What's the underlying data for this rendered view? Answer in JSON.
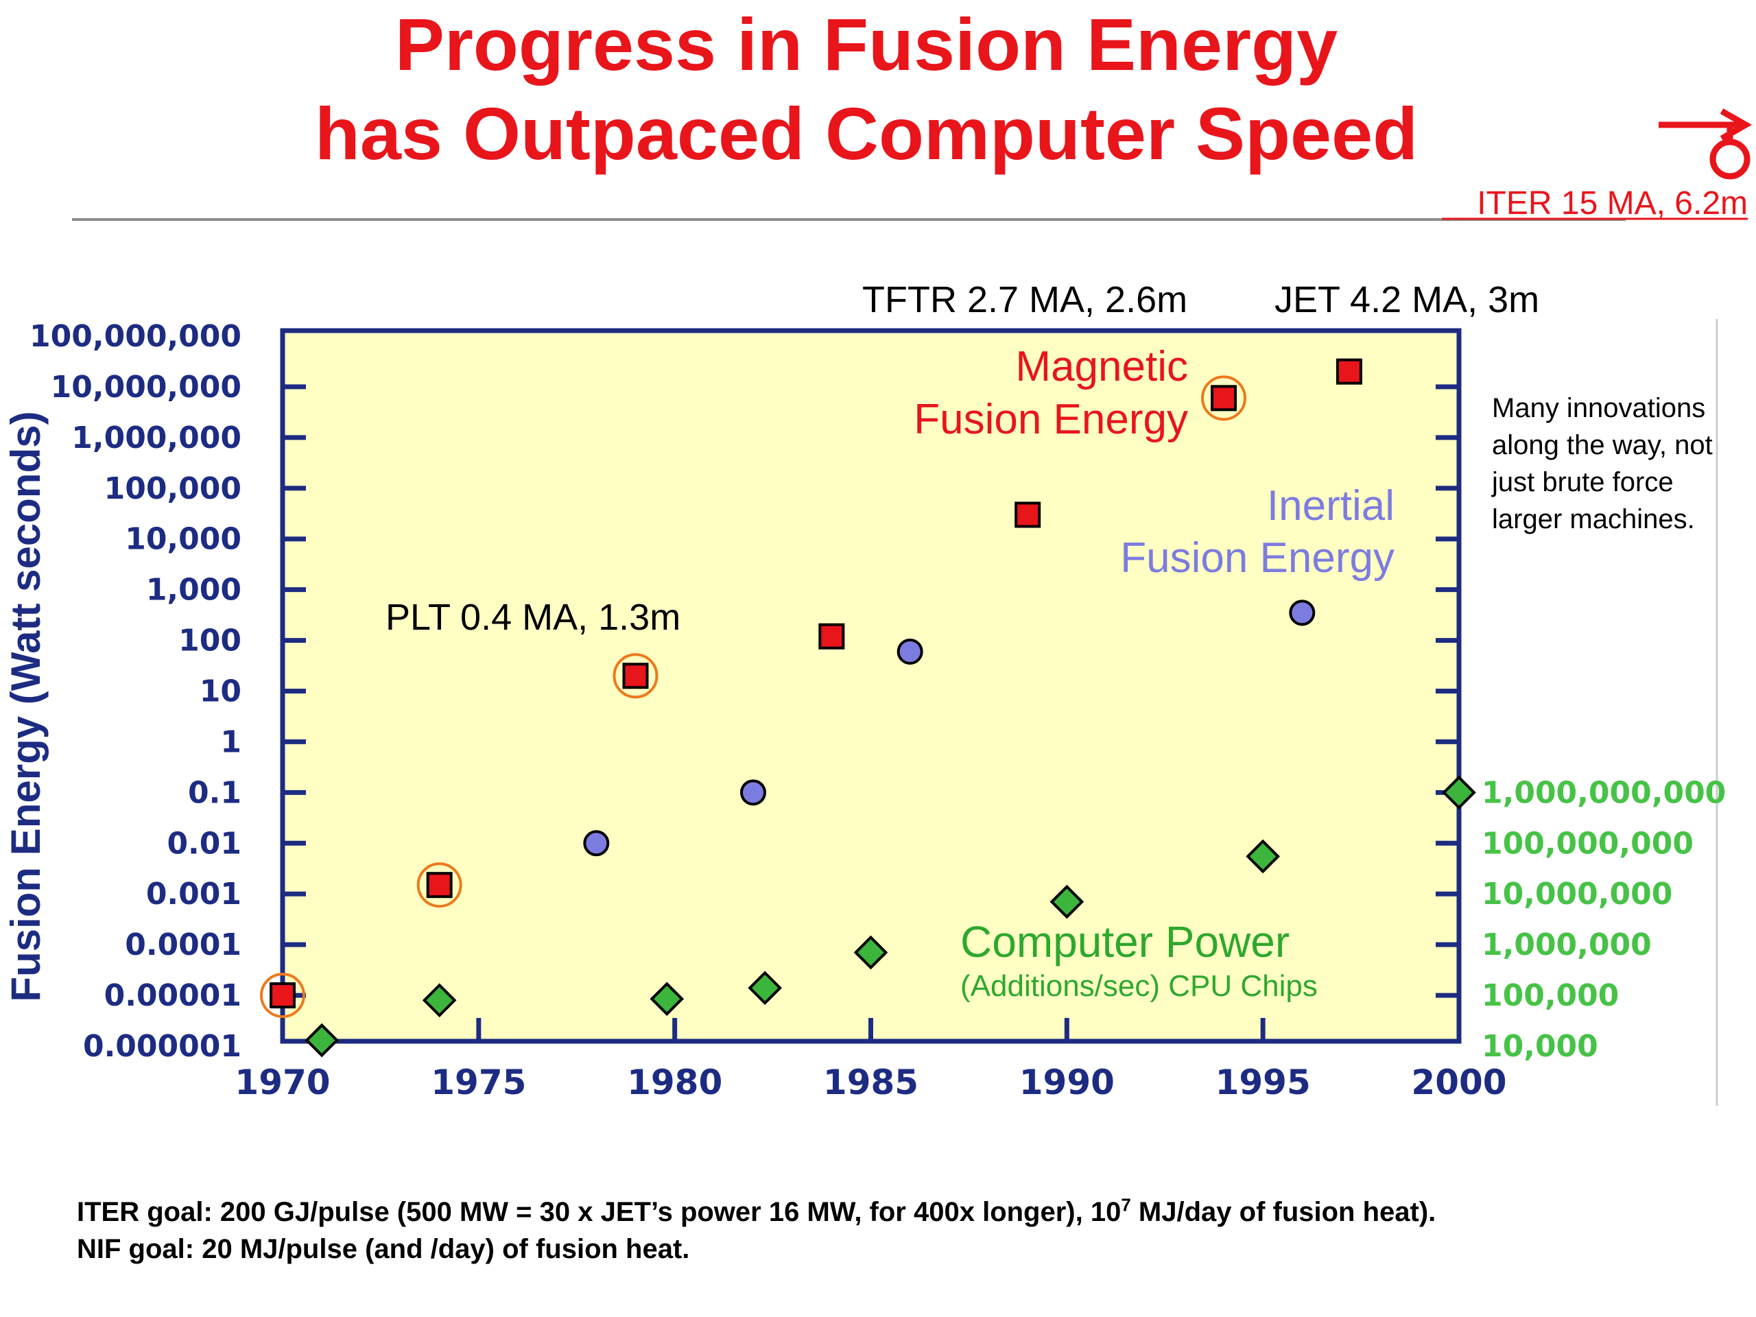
{
  "title": {
    "line1": "Progress in Fusion Energy",
    "line2": "has Outpaced Computer Speed"
  },
  "annotations": {
    "iter": "ITER 15 MA, 6.2m",
    "tftr": "TFTR 2.7 MA, 2.6m",
    "jet": "JET 4.2 MA, 3m",
    "plt": "PLT 0.4 MA, 1.3m",
    "side_note": [
      "Many innovations",
      "along the way, not",
      "just brute force",
      "larger machines."
    ],
    "mfe_label": [
      "Magnetic",
      "Fusion Energy"
    ],
    "ife_label": [
      "Inertial",
      "Fusion Energy"
    ],
    "cpu_label": "Computer Power",
    "cpu_sublabel": "(Additions/sec) CPU Chips"
  },
  "footnote": {
    "line1_pre": "ITER goal: 200 GJ/pulse (500 MW = 30 x JET’s power 16 MW, for 400x longer), 10",
    "line1_sup": "7",
    "line1_post": " MJ/day of fusion heat).",
    "line2": "NIF goal: 20 MJ/pulse (and /day) of fusion heat."
  },
  "colors": {
    "title": "#e8151b",
    "axis": "#1d2c82",
    "plot_bg": "#ffffc4",
    "mfe": "#e8151b",
    "ife": "#7c7ce0",
    "cpu": "#3cb53c",
    "cpu_axis_text": "#47c247",
    "highlight_ring": "#ec7a1c"
  },
  "chart_data": {
    "type": "scatter",
    "ylabel": "Fusion Energy (Watt seconds)",
    "x_ticks": [
      "1970",
      "1975",
      "1980",
      "1985",
      "1990",
      "1995",
      "2000"
    ],
    "xlim": [
      1970,
      2000
    ],
    "y_left_ticks": [
      "0.000001",
      "0.00001",
      "0.0001",
      "0.001",
      "0.01",
      "0.1",
      "1",
      "10",
      "100",
      "1,000",
      "10,000",
      "100,000",
      "1,000,000",
      "10,000,000",
      "100,000,000"
    ],
    "ylim_left": [
      1e-06,
      100000000
    ],
    "y_scale": "log",
    "y_right_ticks": [
      "10,000",
      "100,000",
      "1,000,000",
      "10,000,000",
      "100,000,000",
      "1,000,000,000"
    ],
    "y_right_range": [
      10000,
      1000000000
    ],
    "series": [
      {
        "key": "mfe",
        "marker": "square",
        "points": [
          {
            "x": 1970,
            "y": 1e-05,
            "ring": true
          },
          {
            "x": 1974,
            "y": 0.0015,
            "ring": true
          },
          {
            "x": 1979,
            "y": 20,
            "ring": true
          },
          {
            "x": 1984,
            "y": 120
          },
          {
            "x": 1989,
            "y": 30000
          },
          {
            "x": 1994,
            "y": 6000000,
            "ring": true
          },
          {
            "x": 1997.2,
            "y": 20000000
          }
        ]
      },
      {
        "key": "ife",
        "marker": "circle",
        "points": [
          {
            "x": 1978,
            "y": 0.01
          },
          {
            "x": 1982,
            "y": 0.1
          },
          {
            "x": 1986,
            "y": 60
          },
          {
            "x": 1996,
            "y": 350
          }
        ]
      },
      {
        "key": "cpu",
        "marker": "diamond",
        "axis": "right",
        "points": [
          {
            "x": 1971,
            "y": 13000
          },
          {
            "x": 1974,
            "y": 80000
          },
          {
            "x": 1979.8,
            "y": 85000
          },
          {
            "x": 1982.3,
            "y": 140000
          },
          {
            "x": 1985,
            "y": 700000
          },
          {
            "x": 1990,
            "y": 7000000
          },
          {
            "x": 1995,
            "y": 55000000
          },
          {
            "x": 2000,
            "y": 1000000000
          }
        ]
      }
    ]
  }
}
